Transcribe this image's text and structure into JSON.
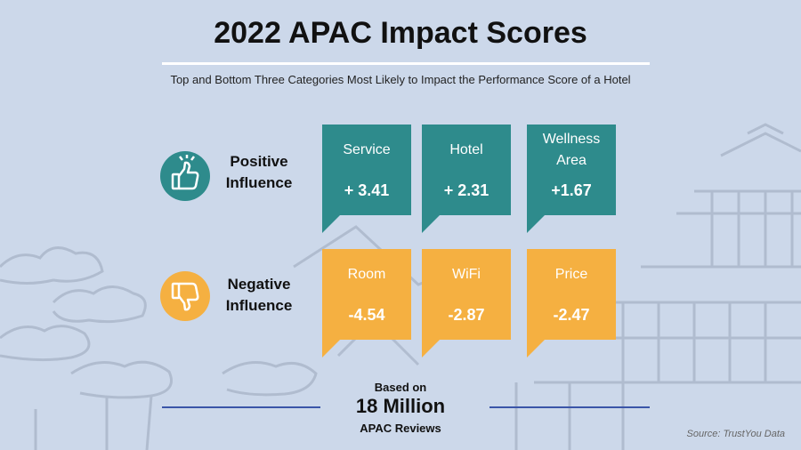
{
  "title": "2022 APAC Impact Scores",
  "subtitle": "Top and  Bottom Three Categories Most Likely to Impact the Performance Score of a Hotel",
  "colors": {
    "positive": "#2e8b8c",
    "negative": "#f5b041",
    "background": "#ccd8ea",
    "rule": "#3b55a8"
  },
  "rows": {
    "positive": {
      "label_line1": "Positive",
      "label_line2": "Influence",
      "icon": "thumbs-up-icon"
    },
    "negative": {
      "label_line1": "Negative",
      "label_line2": "Influence",
      "icon": "thumbs-down-icon"
    }
  },
  "chart_data": {
    "type": "table",
    "title": "2022 APAC Impact Scores",
    "series": [
      {
        "name": "Positive Influence",
        "categories": [
          "Service",
          "Hotel",
          "Wellness Area"
        ],
        "values": [
          3.41,
          2.31,
          1.67
        ],
        "labels": [
          "+ 3.41",
          "+ 2.31",
          "+1.67"
        ],
        "category_lines": [
          [
            "Service"
          ],
          [
            "Hotel"
          ],
          [
            "Wellness",
            "Area"
          ]
        ]
      },
      {
        "name": "Negative Influence",
        "categories": [
          "Room",
          "WiFi",
          "Price"
        ],
        "values": [
          -4.54,
          -2.87,
          -2.47
        ],
        "labels": [
          "-4.54",
          "-2.87",
          "-2.47"
        ],
        "category_lines": [
          [
            "Room"
          ],
          [
            "WiFi"
          ],
          [
            "Price"
          ]
        ]
      }
    ]
  },
  "footer": {
    "based_on": "Based on",
    "count": "18 Million",
    "reviews": "APAC Reviews",
    "source": "Source: TrustYou  Data"
  }
}
